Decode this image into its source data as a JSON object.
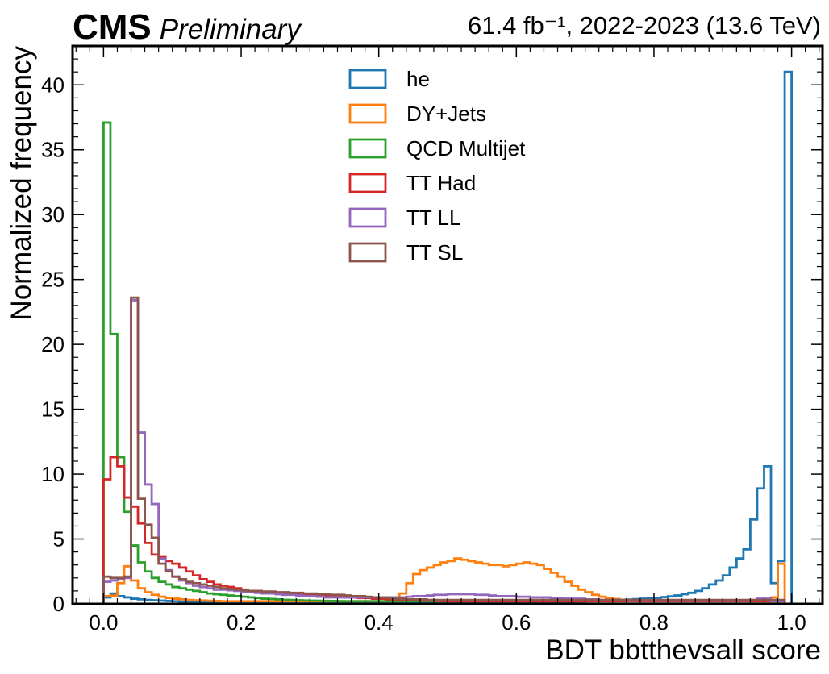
{
  "header": {
    "experiment": "CMS",
    "status": "Preliminary",
    "lumi_text": "61.4 fb⁻¹, 2022-2023 (13.6 TeV)"
  },
  "chart_data": {
    "type": "histogram-step",
    "xlabel": "BDT bbtthevsall score",
    "ylabel": "Normalized frequency",
    "xlim": [
      -0.045,
      1.045
    ],
    "ylim": [
      0,
      43
    ],
    "x_ticks": [
      0.0,
      0.2,
      0.4,
      0.6,
      0.8,
      1.0
    ],
    "x_tick_labels": [
      "0.0",
      "0.2",
      "0.4",
      "0.6",
      "0.8",
      "1.0"
    ],
    "y_ticks": [
      0,
      5,
      10,
      15,
      20,
      25,
      30,
      35,
      40
    ],
    "y_tick_labels": [
      "0",
      "5",
      "10",
      "15",
      "20",
      "25",
      "30",
      "35",
      "40"
    ],
    "legend_position": "top-center",
    "bin_range": [
      0.0,
      1.0
    ],
    "n_bins": 100,
    "series": [
      {
        "name": "he",
        "color": "#1f77b4",
        "values": [
          0.5,
          0.8,
          0.6,
          0.5,
          0.4,
          0.35,
          0.3,
          0.28,
          0.25,
          0.22,
          0.2,
          0.18,
          0.16,
          0.15,
          0.14,
          0.13,
          0.12,
          0.11,
          0.1,
          0.1,
          0.09,
          0.09,
          0.08,
          0.08,
          0.08,
          0.07,
          0.07,
          0.07,
          0.07,
          0.06,
          0.06,
          0.06,
          0.06,
          0.06,
          0.06,
          0.06,
          0.06,
          0.06,
          0.06,
          0.06,
          0.06,
          0.06,
          0.06,
          0.06,
          0.06,
          0.06,
          0.07,
          0.07,
          0.07,
          0.07,
          0.07,
          0.08,
          0.08,
          0.08,
          0.09,
          0.09,
          0.1,
          0.1,
          0.11,
          0.11,
          0.12,
          0.12,
          0.13,
          0.13,
          0.14,
          0.15,
          0.16,
          0.17,
          0.18,
          0.19,
          0.2,
          0.22,
          0.24,
          0.26,
          0.28,
          0.3,
          0.33,
          0.36,
          0.4,
          0.43,
          0.47,
          0.52,
          0.58,
          0.65,
          0.75,
          0.85,
          1.0,
          1.2,
          1.5,
          1.8,
          2.2,
          2.8,
          3.5,
          4.2,
          6.5,
          8.9,
          10.6,
          1.6,
          3.3,
          41.0
        ]
      },
      {
        "name": "DY+Jets",
        "color": "#ff7f0e",
        "values": [
          0.6,
          0.65,
          1.6,
          2.9,
          1.8,
          1.2,
          0.9,
          0.7,
          0.55,
          0.45,
          0.4,
          0.35,
          0.3,
          0.28,
          0.26,
          0.24,
          0.22,
          0.2,
          0.2,
          0.2,
          0.2,
          0.2,
          0.2,
          0.2,
          0.2,
          0.2,
          0.2,
          0.2,
          0.2,
          0.2,
          0.2,
          0.2,
          0.2,
          0.2,
          0.2,
          0.2,
          0.2,
          0.2,
          0.2,
          0.2,
          0.2,
          0.2,
          0.3,
          0.8,
          1.6,
          2.3,
          2.6,
          2.8,
          3.0,
          3.2,
          3.3,
          3.5,
          3.4,
          3.3,
          3.2,
          3.1,
          3.0,
          3.0,
          2.9,
          3.0,
          3.1,
          3.2,
          3.1,
          3.0,
          2.7,
          2.4,
          2.1,
          1.7,
          1.4,
          1.1,
          0.9,
          0.7,
          0.55,
          0.45,
          0.38,
          0.3,
          0.25,
          0.22,
          0.2,
          0.2,
          0.2,
          0.2,
          0.2,
          0.2,
          0.2,
          0.2,
          0.2,
          0.2,
          0.2,
          0.2,
          0.2,
          0.2,
          0.2,
          0.2,
          0.2,
          0.2,
          0.2,
          0.5,
          3.1,
          0.0
        ]
      },
      {
        "name": "QCD Multijet",
        "color": "#2ca02c",
        "values": [
          37.1,
          20.8,
          11.3,
          7.1,
          4.5,
          3.2,
          2.5,
          2.0,
          1.7,
          1.5,
          1.3,
          1.2,
          1.1,
          1.0,
          0.9,
          0.8,
          0.75,
          0.7,
          0.65,
          0.6,
          0.55,
          0.5,
          0.45,
          0.4,
          0.38,
          0.35,
          0.32,
          0.3,
          0.28,
          0.26,
          0.25,
          0.24,
          0.23,
          0.22,
          0.21,
          0.2,
          0.2,
          0.2,
          0.2,
          0.2,
          0.2,
          0.2,
          0.2,
          0.2,
          0.2,
          0.2,
          0.2,
          0.2,
          0.2,
          0.2,
          0.2,
          0.2,
          0.2,
          0.2,
          0.2,
          0.2,
          0.2,
          0.2,
          0.2,
          0.2,
          0.2,
          0.2,
          0.2,
          0.2,
          0.2,
          0.2,
          0.2,
          0.2,
          0.2,
          0.2,
          0.2,
          0.2,
          0.2,
          0.2,
          0.2,
          0.2,
          0.2,
          0.2,
          0.2,
          0.2,
          0.2,
          0.2,
          0.2,
          0.2,
          0.2,
          0.2,
          0.2,
          0.2,
          0.2,
          0.2,
          0.2,
          0.2,
          0.2,
          0.2,
          0.2,
          0.2,
          0.2,
          0.2,
          0.2,
          0.0
        ]
      },
      {
        "name": "TT Had",
        "color": "#d62728",
        "values": [
          9.6,
          11.3,
          10.6,
          8.2,
          7.5,
          6.2,
          4.7,
          3.8,
          3.6,
          3.3,
          3.1,
          2.8,
          2.5,
          2.2,
          1.9,
          1.7,
          1.5,
          1.4,
          1.3,
          1.2,
          1.1,
          1.0,
          1.0,
          0.9,
          0.9,
          0.85,
          0.8,
          0.8,
          0.75,
          0.7,
          0.7,
          0.65,
          0.6,
          0.6,
          0.55,
          0.5,
          0.5,
          0.45,
          0.45,
          0.4,
          0.4,
          0.35,
          0.35,
          0.3,
          0.3,
          0.3,
          0.25,
          0.25,
          0.25,
          0.2,
          0.2,
          0.2,
          0.2,
          0.2,
          0.2,
          0.2,
          0.2,
          0.2,
          0.2,
          0.2,
          0.2,
          0.2,
          0.2,
          0.2,
          0.2,
          0.2,
          0.2,
          0.2,
          0.2,
          0.2,
          0.2,
          0.2,
          0.2,
          0.2,
          0.2,
          0.2,
          0.2,
          0.2,
          0.2,
          0.2,
          0.2,
          0.2,
          0.2,
          0.2,
          0.2,
          0.2,
          0.2,
          0.2,
          0.2,
          0.2,
          0.2,
          0.2,
          0.2,
          0.2,
          0.2,
          0.2,
          0.2,
          0.2,
          0.2,
          0.0
        ]
      },
      {
        "name": "TT LL",
        "color": "#9467bd",
        "values": [
          1.7,
          1.8,
          1.9,
          2.0,
          23.4,
          13.2,
          9.2,
          7.7,
          3.5,
          2.6,
          2.1,
          1.8,
          1.6,
          1.4,
          1.3,
          1.2,
          1.1,
          1.1,
          1.05,
          1.0,
          0.95,
          0.9,
          0.85,
          0.8,
          0.8,
          0.75,
          0.7,
          0.7,
          0.65,
          0.6,
          0.6,
          0.55,
          0.5,
          0.5,
          0.5,
          0.5,
          0.5,
          0.5,
          0.5,
          0.5,
          0.5,
          0.5,
          0.5,
          0.5,
          0.55,
          0.6,
          0.6,
          0.65,
          0.7,
          0.7,
          0.75,
          0.75,
          0.75,
          0.75,
          0.7,
          0.7,
          0.65,
          0.6,
          0.6,
          0.6,
          0.55,
          0.55,
          0.5,
          0.5,
          0.5,
          0.45,
          0.45,
          0.4,
          0.4,
          0.4,
          0.35,
          0.35,
          0.3,
          0.3,
          0.3,
          0.3,
          0.25,
          0.25,
          0.25,
          0.25,
          0.25,
          0.25,
          0.25,
          0.25,
          0.25,
          0.25,
          0.25,
          0.25,
          0.25,
          0.25,
          0.25,
          0.25,
          0.25,
          0.25,
          0.3,
          0.4,
          0.4,
          0.2,
          0.2,
          0.0
        ]
      },
      {
        "name": "TT SL",
        "color": "#8c564b",
        "values": [
          2.1,
          2.0,
          2.0,
          2.1,
          23.6,
          8.1,
          6.1,
          5.1,
          3.1,
          2.5,
          2.1,
          1.9,
          1.7,
          1.6,
          1.5,
          1.4,
          1.3,
          1.2,
          1.15,
          1.1,
          1.05,
          1.0,
          1.0,
          0.95,
          0.95,
          0.9,
          0.9,
          0.85,
          0.85,
          0.8,
          0.8,
          0.75,
          0.75,
          0.7,
          0.7,
          0.65,
          0.6,
          0.6,
          0.55,
          0.5,
          0.5,
          0.45,
          0.4,
          0.4,
          0.35,
          0.35,
          0.35,
          0.3,
          0.3,
          0.3,
          0.3,
          0.3,
          0.3,
          0.3,
          0.3,
          0.3,
          0.3,
          0.3,
          0.3,
          0.3,
          0.3,
          0.3,
          0.3,
          0.3,
          0.3,
          0.3,
          0.3,
          0.3,
          0.3,
          0.3,
          0.3,
          0.3,
          0.3,
          0.3,
          0.3,
          0.3,
          0.3,
          0.3,
          0.3,
          0.3,
          0.3,
          0.3,
          0.3,
          0.3,
          0.3,
          0.3,
          0.3,
          0.3,
          0.3,
          0.3,
          0.3,
          0.3,
          0.3,
          0.3,
          0.3,
          0.3,
          0.3,
          0.3,
          0.3,
          0.0
        ]
      }
    ]
  }
}
